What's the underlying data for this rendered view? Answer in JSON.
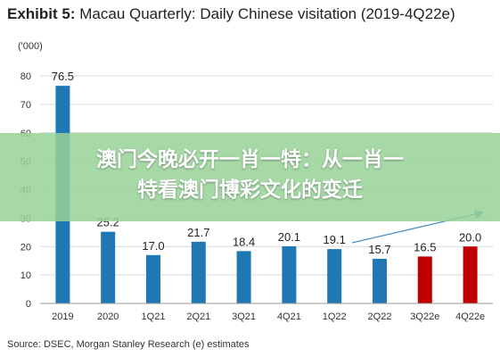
{
  "header": {
    "exhibit": "Exhibit 5:",
    "title": "Macau Quarterly: Daily Chinese visitation (2019-4Q22e)"
  },
  "overlay": {
    "line1": "澳门今晚必开一肖一特：从一肖一",
    "line2": "特看澳门博彩文化的变迁"
  },
  "source": "Source: DSEC, Morgan Stanley Research (e) estimates",
  "colors": {
    "actual": "#1f77b4",
    "estimate": "#c00000",
    "trend_arrow": "#4a90c8"
  },
  "chart_data": {
    "type": "bar",
    "title": "Macau Quarterly: Daily Chinese visitation (2019-4Q22e)",
    "ylabel": "('000)",
    "xlabel": "",
    "ylim": [
      0,
      80
    ],
    "yticks": [
      0,
      10,
      20,
      30,
      40,
      50,
      60,
      70,
      80
    ],
    "grid": true,
    "categories": [
      "2019",
      "2020",
      "1Q21",
      "2Q21",
      "3Q21",
      "4Q21",
      "1Q22",
      "2Q22",
      "3Q22e",
      "4Q22e"
    ],
    "values": [
      76.5,
      25.2,
      17.0,
      21.7,
      18.4,
      20.1,
      19.1,
      15.7,
      16.5,
      20.0
    ],
    "value_labels": [
      "76.5",
      "25.2",
      "17.0",
      "21.7",
      "18.4",
      "20.1",
      "19.1",
      "15.7",
      "16.5",
      "20.0"
    ],
    "estimate": [
      false,
      false,
      false,
      false,
      false,
      false,
      false,
      false,
      true,
      true
    ],
    "trend_arrow": true
  }
}
